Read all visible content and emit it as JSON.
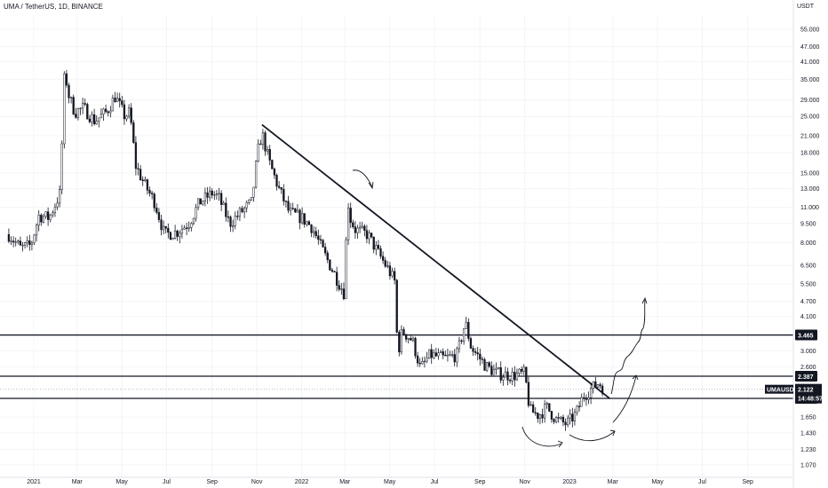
{
  "chart_data": {
    "type": "candlestick",
    "title": "UMA / TetherUS, 1D, BINANCE",
    "currency": "USDT",
    "y_scale": "log",
    "ylim": [
      1.02,
      62.0
    ],
    "y_ticks": [
      "55.000",
      "47.000",
      "41.000",
      "35.000",
      "29.000",
      "25.000",
      "21.000",
      "18.000",
      "15.000",
      "13.000",
      "11.000",
      "9.500",
      "8.000",
      "6.500",
      "5.500",
      "4.700",
      "4.100",
      "3.000",
      "2.600",
      "1.650",
      "1.430",
      "1.230",
      "1.070"
    ],
    "x_ticks": [
      "2021",
      "Mar",
      "May",
      "Jul",
      "Sep",
      "Nov",
      "2022",
      "Mar",
      "May",
      "Jul",
      "Sep",
      "Nov",
      "2023",
      "Mar",
      "May",
      "Jul",
      "Sep"
    ],
    "series": [
      {
        "values": [
          [
            "2020-11-28",
            8.6
          ],
          [
            "2020-12-14",
            7.6
          ],
          [
            "2020-12-28",
            7.8
          ],
          [
            "2021-01-08",
            10.2
          ],
          [
            "2021-01-22",
            10.0
          ],
          [
            "2021-02-06",
            12.5
          ],
          [
            "2021-02-12",
            38.0
          ],
          [
            "2021-02-18",
            30.0
          ],
          [
            "2021-02-26",
            26.0
          ],
          [
            "2021-03-10",
            27.0
          ],
          [
            "2021-03-25",
            24.0
          ],
          [
            "2021-04-10",
            26.0
          ],
          [
            "2021-04-22",
            30.0
          ],
          [
            "2021-05-05",
            25.0
          ],
          [
            "2021-05-12",
            26.0
          ],
          [
            "2021-05-20",
            16.0
          ],
          [
            "2021-06-01",
            13.5
          ],
          [
            "2021-06-15",
            11.5
          ],
          [
            "2021-06-28",
            8.6
          ],
          [
            "2021-07-15",
            8.8
          ],
          [
            "2021-07-31",
            9.5
          ],
          [
            "2021-08-15",
            11.5
          ],
          [
            "2021-09-01",
            12.5
          ],
          [
            "2021-09-10",
            12.0
          ],
          [
            "2021-09-25",
            9.5
          ],
          [
            "2021-10-10",
            10.5
          ],
          [
            "2021-10-25",
            11.5
          ],
          [
            "2021-11-02",
            18.0
          ],
          [
            "2021-11-08",
            21.5
          ],
          [
            "2021-11-18",
            16.5
          ],
          [
            "2021-12-01",
            13.0
          ],
          [
            "2021-12-15",
            10.5
          ],
          [
            "2022-01-01",
            10.0
          ],
          [
            "2022-01-15",
            9.2
          ],
          [
            "2022-02-01",
            7.2
          ],
          [
            "2022-02-15",
            6.0
          ],
          [
            "2022-02-26",
            5.2
          ],
          [
            "2022-03-01",
            5.0
          ],
          [
            "2022-03-04",
            12.5
          ],
          [
            "2022-03-08",
            10.0
          ],
          [
            "2022-03-15",
            9.0
          ],
          [
            "2022-04-01",
            8.6
          ],
          [
            "2022-04-15",
            7.3
          ],
          [
            "2022-04-30",
            6.2
          ],
          [
            "2022-05-08",
            5.6
          ],
          [
            "2022-05-12",
            2.9
          ],
          [
            "2022-05-18",
            3.6
          ],
          [
            "2022-06-01",
            3.3
          ],
          [
            "2022-06-12",
            2.55
          ],
          [
            "2022-06-25",
            2.9
          ],
          [
            "2022-07-15",
            2.8
          ],
          [
            "2022-08-01",
            2.9
          ],
          [
            "2022-08-12",
            3.9
          ],
          [
            "2022-08-20",
            3.1
          ],
          [
            "2022-09-10",
            2.6
          ],
          [
            "2022-09-25",
            2.45
          ],
          [
            "2022-10-15",
            2.4
          ],
          [
            "2022-11-01",
            2.45
          ],
          [
            "2022-11-08",
            1.75
          ],
          [
            "2022-11-20",
            1.68
          ],
          [
            "2022-12-01",
            1.8
          ],
          [
            "2022-12-15",
            1.6
          ],
          [
            "2022-12-28",
            1.55
          ],
          [
            "2023-01-10",
            1.7
          ],
          [
            "2023-01-20",
            2.0
          ],
          [
            "2023-02-01",
            2.15
          ],
          [
            "2023-02-10",
            2.25
          ],
          [
            "2023-02-18",
            2.12
          ]
        ]
      }
    ],
    "horizontal_levels": [
      {
        "value": 3.465,
        "label": "3.465"
      },
      {
        "value": 2.387,
        "label": "2.387"
      },
      {
        "value": 1.954,
        "label": "1.954"
      }
    ],
    "price_tag": {
      "symbol": "UMAUSDT",
      "value": "2.122",
      "countdown": "14:48:57"
    },
    "trendline": [
      [
        "2021-11-08",
        23.2
      ],
      [
        "2023-02-25",
        1.95
      ]
    ]
  }
}
